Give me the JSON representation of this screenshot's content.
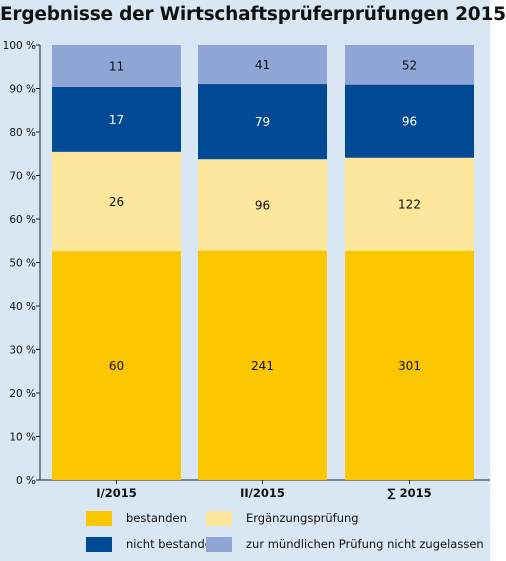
{
  "chart_data": {
    "type": "bar",
    "stacked": true,
    "normalized": true,
    "title": "Ergebnisse der Wirtschaftsprüferprüfungen 2015",
    "categories": [
      "I/2015",
      "II/2015",
      "∑ 2015"
    ],
    "series": [
      {
        "name": "bestanden",
        "color": "#fcc600",
        "values": [
          60,
          241,
          301
        ]
      },
      {
        "name": "Ergänzungsprüfung",
        "color": "#fce79c",
        "values": [
          26,
          96,
          122
        ]
      },
      {
        "name": "nicht bestanden",
        "color": "#004a96",
        "values": [
          17,
          79,
          96
        ]
      },
      {
        "name": "zur mündlichen Prüfung nicht zugelassen",
        "color": "#8fa5d6",
        "values": [
          11,
          41,
          52
        ]
      }
    ],
    "y_ticks": [
      "0 %",
      "10 %",
      "20 %",
      "30 %",
      "40 %",
      "50 %",
      "60 %",
      "70 %",
      "80 %",
      "90 %",
      "100 %"
    ],
    "ylim": [
      0,
      100
    ],
    "grid": false,
    "legend": "bottom",
    "background": "#d9e6f4"
  }
}
